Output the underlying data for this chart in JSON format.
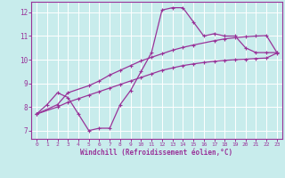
{
  "title": "",
  "xlabel": "Windchill (Refroidissement éolien,°C)",
  "background_color": "#c8ecec",
  "grid_color": "#aadddd",
  "line_color": "#993399",
  "xlim": [
    -0.5,
    23.5
  ],
  "ylim": [
    6.65,
    12.45
  ],
  "xticks": [
    0,
    1,
    2,
    3,
    4,
    5,
    6,
    7,
    8,
    9,
    10,
    11,
    12,
    13,
    14,
    15,
    16,
    17,
    18,
    19,
    20,
    21,
    22,
    23
  ],
  "yticks": [
    7,
    8,
    9,
    10,
    11,
    12
  ],
  "hours": [
    0,
    1,
    2,
    3,
    4,
    5,
    6,
    7,
    8,
    9,
    10,
    11,
    12,
    13,
    14,
    15,
    16,
    17,
    18,
    19,
    20,
    21,
    22,
    23
  ],
  "windchill": [
    7.7,
    8.1,
    8.6,
    8.4,
    7.7,
    7.0,
    7.1,
    7.1,
    8.1,
    8.7,
    9.5,
    10.3,
    12.1,
    12.2,
    12.2,
    11.6,
    11.0,
    11.1,
    11.0,
    11.0,
    10.5,
    10.3,
    10.3,
    10.3
  ],
  "line1_x": [
    0,
    2,
    3,
    5,
    6,
    7,
    8,
    9,
    10,
    11,
    12,
    13,
    14,
    15,
    17,
    18,
    19,
    20,
    21,
    22,
    23
  ],
  "line1_y": [
    7.7,
    8.1,
    8.6,
    8.9,
    9.1,
    9.35,
    9.55,
    9.75,
    9.95,
    10.1,
    10.25,
    10.4,
    10.52,
    10.62,
    10.8,
    10.88,
    10.93,
    10.97,
    11.0,
    11.02,
    10.3
  ],
  "line2_x": [
    0,
    2,
    3,
    4,
    5,
    6,
    7,
    8,
    9,
    10,
    11,
    12,
    13,
    14,
    15,
    16,
    17,
    18,
    19,
    20,
    21,
    22,
    23
  ],
  "line2_y": [
    7.7,
    8.0,
    8.2,
    8.35,
    8.5,
    8.65,
    8.8,
    8.95,
    9.1,
    9.25,
    9.4,
    9.55,
    9.65,
    9.75,
    9.82,
    9.88,
    9.93,
    9.97,
    10.0,
    10.02,
    10.05,
    10.07,
    10.28
  ]
}
